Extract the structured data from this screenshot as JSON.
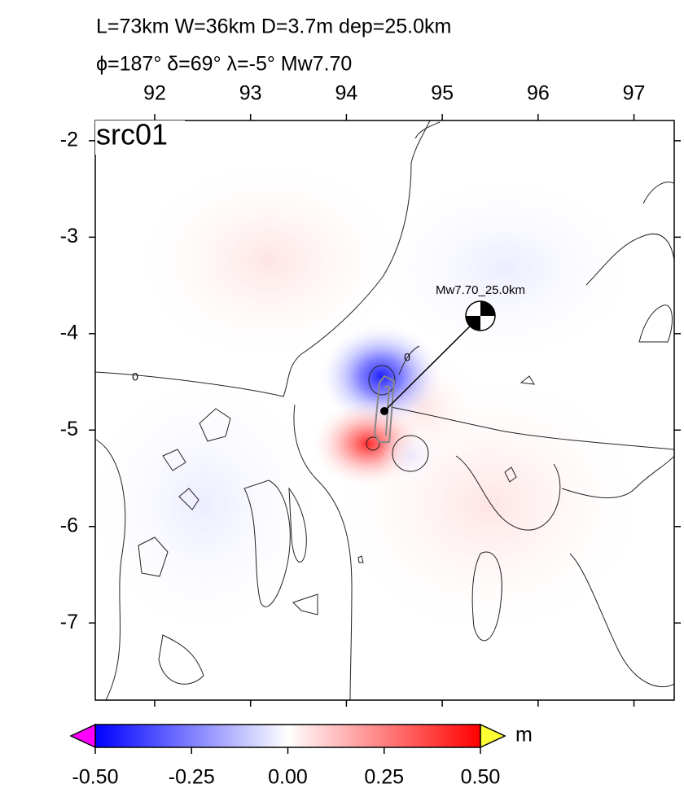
{
  "header": {
    "line1": "L=73km W=36km D=3.7m dep=25.0km",
    "line2": "ϕ=187° δ=69° λ=-5° Mw7.70"
  },
  "map": {
    "label": "src01",
    "xlim": [
      91.38,
      97.42
    ],
    "xticks": [
      92,
      93,
      94,
      95,
      96,
      97
    ],
    "ylim": [
      -7.8,
      -1.79
    ],
    "yticks": [
      -2,
      -3,
      -4,
      -5,
      -6,
      -7
    ],
    "mechanism_label": "Mw7.70_25.0km",
    "contour_labels": [
      "0",
      "0"
    ]
  },
  "colorbar": {
    "lim": [
      -0.5,
      0.5
    ],
    "ticks": [
      {
        "value": -0.5,
        "label": "-0.50"
      },
      {
        "value": -0.25,
        "label": "-0.25"
      },
      {
        "value": 0,
        "label": "0.00"
      },
      {
        "value": 0.25,
        "label": "0.25"
      },
      {
        "value": 0.5,
        "label": "0.50"
      }
    ],
    "unit": "m"
  }
}
